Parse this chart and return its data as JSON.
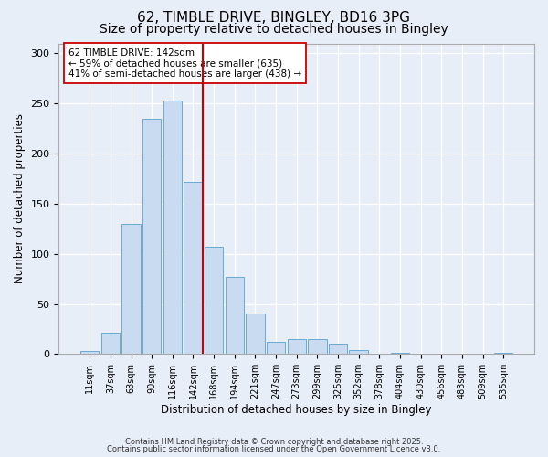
{
  "title": "62, TIMBLE DRIVE, BINGLEY, BD16 3PG",
  "subtitle": "Size of property relative to detached houses in Bingley",
  "xlabel": "Distribution of detached houses by size in Bingley",
  "ylabel": "Number of detached properties",
  "categories": [
    "11sqm",
    "37sqm",
    "63sqm",
    "90sqm",
    "116sqm",
    "142sqm",
    "168sqm",
    "194sqm",
    "221sqm",
    "247sqm",
    "273sqm",
    "299sqm",
    "325sqm",
    "352sqm",
    "378sqm",
    "404sqm",
    "430sqm",
    "456sqm",
    "483sqm",
    "509sqm",
    "535sqm"
  ],
  "values": [
    3,
    21,
    130,
    235,
    253,
    172,
    107,
    77,
    40,
    12,
    15,
    15,
    10,
    4,
    0,
    1,
    0,
    0,
    0,
    0,
    1
  ],
  "bar_color": "#c9dbf0",
  "bar_edge_color": "#6aaad4",
  "vline_color": "#cc0000",
  "annotation_text": "62 TIMBLE DRIVE: 142sqm\n← 59% of detached houses are smaller (635)\n41% of semi-detached houses are larger (438) →",
  "annotation_box_color": "#ffffff",
  "annotation_box_edge": "#cc0000",
  "ylim": [
    0,
    310
  ],
  "yticks": [
    0,
    50,
    100,
    150,
    200,
    250,
    300
  ],
  "background_color": "#e8eef8",
  "footer1": "Contains HM Land Registry data © Crown copyright and database right 2025.",
  "footer2": "Contains public sector information licensed under the Open Government Licence v3.0.",
  "title_fontsize": 11,
  "subtitle_fontsize": 10,
  "tick_fontsize": 7,
  "axis_label_fontsize": 8.5
}
